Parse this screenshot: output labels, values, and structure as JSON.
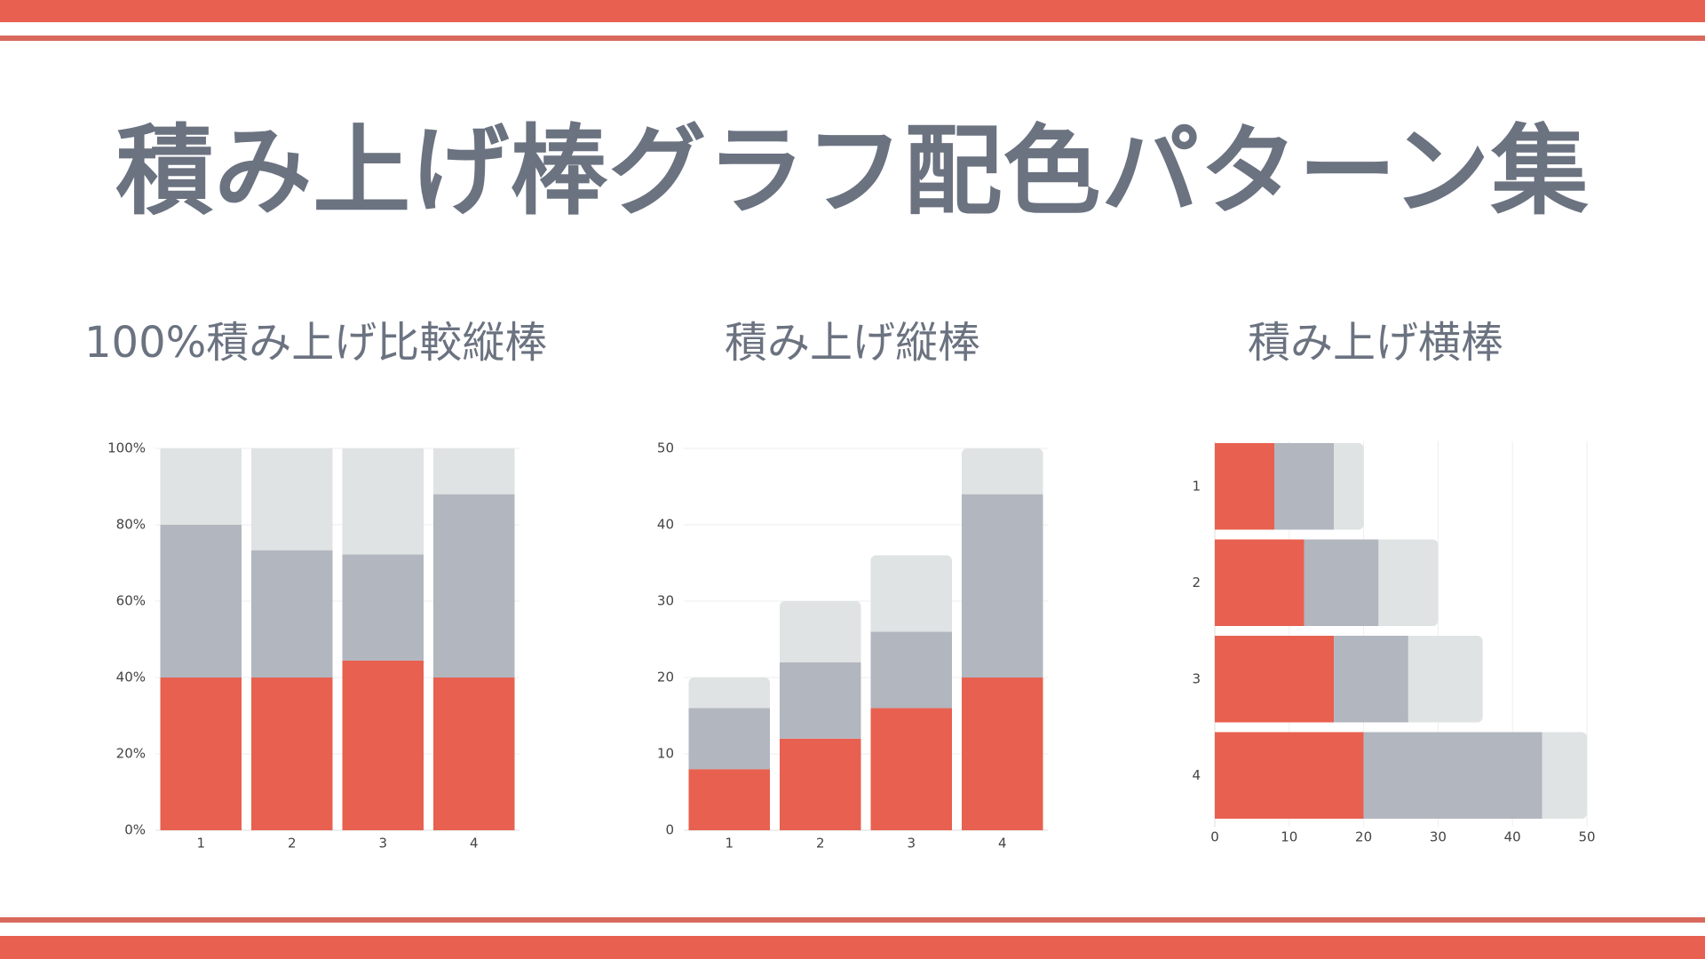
{
  "title": "積み上げ棒グラフ配色パターン集",
  "colors": {
    "accent": "#e8604f",
    "series_red": "#e8604f",
    "series_gray": "#b1b6bf",
    "series_light": "#dfe3e3",
    "text": "#6b7280",
    "grid": "#eeeeee"
  },
  "chart_data": [
    {
      "type": "bar",
      "stacking": "percent",
      "orientation": "vertical",
      "title": "100%積み上げ比較縦棒",
      "categories": [
        "1",
        "2",
        "3",
        "4"
      ],
      "series": [
        {
          "values": [
            8,
            12,
            16,
            20
          ],
          "color": "#e8604f"
        },
        {
          "values": [
            8,
            10,
            10,
            24
          ],
          "color": "#b1b6bf"
        },
        {
          "values": [
            4,
            8,
            10,
            6
          ],
          "color": "#dfe3e3"
        }
      ],
      "ylim": [
        0,
        100
      ],
      "yticks": [
        "0%",
        "20%",
        "40%",
        "60%",
        "80%",
        "100%"
      ],
      "grid": true
    },
    {
      "type": "bar",
      "stacking": "normal",
      "orientation": "vertical",
      "title": "積み上げ縦棒",
      "categories": [
        "1",
        "2",
        "3",
        "4"
      ],
      "series": [
        {
          "values": [
            8,
            12,
            16,
            20
          ],
          "color": "#e8604f"
        },
        {
          "values": [
            8,
            10,
            10,
            24
          ],
          "color": "#b1b6bf"
        },
        {
          "values": [
            4,
            8,
            10,
            6
          ],
          "color": "#dfe3e3"
        }
      ],
      "ylim": [
        0,
        50
      ],
      "yticks": [
        "0",
        "10",
        "20",
        "30",
        "40",
        "50"
      ],
      "grid": true
    },
    {
      "type": "bar",
      "stacking": "normal",
      "orientation": "horizontal",
      "title": "積み上げ横棒",
      "categories": [
        "1",
        "2",
        "3",
        "4"
      ],
      "series": [
        {
          "values": [
            8,
            12,
            16,
            20
          ],
          "color": "#e8604f"
        },
        {
          "values": [
            8,
            10,
            10,
            24
          ],
          "color": "#b1b6bf"
        },
        {
          "values": [
            4,
            8,
            10,
            6
          ],
          "color": "#dfe3e3"
        }
      ],
      "xlim": [
        0,
        50
      ],
      "xticks": [
        "0",
        "10",
        "20",
        "30",
        "40",
        "50"
      ],
      "grid": true
    }
  ]
}
